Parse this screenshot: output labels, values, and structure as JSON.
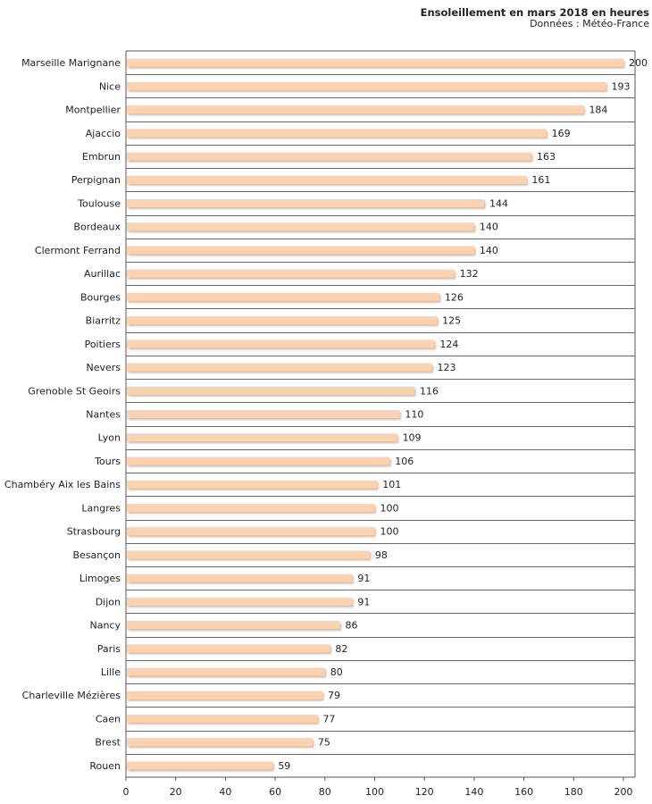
{
  "chart_data": {
    "type": "bar",
    "orientation": "horizontal",
    "title": "Ensoleillement en mars 2018 en heures",
    "subtitle": "Données : Météo-France",
    "xlabel": "",
    "ylabel": "",
    "xlim": [
      0,
      200
    ],
    "xticks": [
      0,
      20,
      40,
      60,
      80,
      100,
      120,
      140,
      160,
      180,
      200
    ],
    "grid": true,
    "bar_color": "#fdd2ad",
    "categories": [
      "Marseille Marignane",
      "Nice",
      "Montpellier",
      "Ajaccio",
      "Embrun",
      "Perpignan",
      "Toulouse",
      "Bordeaux",
      "Clermont Ferrand",
      "Aurillac",
      "Bourges",
      "Biarritz",
      "Poitiers",
      "Nevers",
      "Grenoble St Geoirs",
      "Nantes",
      "Lyon",
      "Tours",
      "Chambéry Aix les Bains",
      "Langres",
      "Strasbourg",
      "Besançon",
      "Limoges",
      "Dijon",
      "Nancy",
      "Paris",
      "Lille",
      "Charleville Mézières",
      "Caen",
      "Brest",
      "Rouen"
    ],
    "values": [
      200,
      193,
      184,
      169,
      163,
      161,
      144,
      140,
      140,
      132,
      126,
      125,
      124,
      123,
      116,
      110,
      109,
      106,
      101,
      100,
      100,
      98,
      91,
      91,
      86,
      82,
      80,
      79,
      77,
      75,
      59
    ]
  }
}
